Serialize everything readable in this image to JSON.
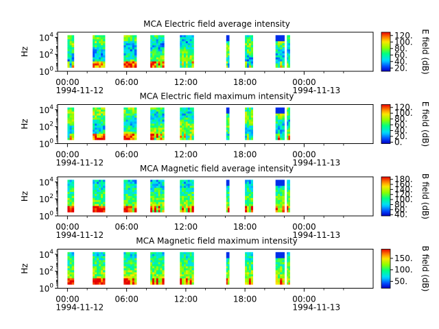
{
  "chart_data": [
    {
      "type": "heatmap",
      "title": "MCA  Electric field average intensity",
      "ylabel": "Hz",
      "colorbar_label": "E field (dB)",
      "colorbar_ticks": [
        "20.",
        "40.",
        "60.",
        "80.",
        "100.",
        "120."
      ],
      "colorbar_range": [
        10,
        130
      ],
      "y_ticks": [
        {
          "base": "10",
          "exp": "0"
        },
        {
          "base": "10",
          "exp": "2"
        },
        {
          "base": "10",
          "exp": "4"
        }
      ],
      "y_range_log10": [
        0,
        4.6
      ],
      "x_range_hours": [
        -1,
        31
      ],
      "x_ticks": [
        {
          "hours": 0,
          "label": "00:00",
          "date": "1994-11-12"
        },
        {
          "hours": 6,
          "label": "06:00"
        },
        {
          "hours": 12,
          "label": "12:00"
        },
        {
          "hours": 18,
          "label": "18:00"
        },
        {
          "hours": 24,
          "label": "00:00",
          "date": "1994-11-13"
        }
      ],
      "segments_hours": [
        [
          0.0,
          0.65
        ],
        [
          2.55,
          3.8
        ],
        [
          5.7,
          7.0
        ],
        [
          8.4,
          9.8
        ],
        [
          11.4,
          12.8
        ],
        [
          16.1,
          16.4
        ],
        [
          18.0,
          18.8
        ],
        [
          21.1,
          22.0
        ],
        [
          22.25,
          22.55
        ]
      ],
      "colormap": "rainbow"
    },
    {
      "type": "heatmap",
      "title": "MCA  Electric field maximum intensity",
      "ylabel": "Hz",
      "colorbar_label": "E field (dB)",
      "colorbar_ticks": [
        "0.",
        "20.",
        "40.",
        "60.",
        "80.",
        "100.",
        "120."
      ],
      "colorbar_range": [
        -5,
        130
      ],
      "y_ticks": [
        {
          "base": "10",
          "exp": "0"
        },
        {
          "base": "10",
          "exp": "2"
        },
        {
          "base": "10",
          "exp": "4"
        }
      ],
      "y_range_log10": [
        0,
        4.6
      ],
      "x_range_hours": [
        -1,
        31
      ],
      "x_ticks": [
        {
          "hours": 0,
          "label": "00:00",
          "date": "1994-11-12"
        },
        {
          "hours": 6,
          "label": "06:00"
        },
        {
          "hours": 12,
          "label": "12:00"
        },
        {
          "hours": 18,
          "label": "18:00"
        },
        {
          "hours": 24,
          "label": "00:00",
          "date": "1994-11-13"
        }
      ],
      "segments_hours": [
        [
          0.0,
          0.65
        ],
        [
          2.55,
          3.8
        ],
        [
          5.7,
          7.0
        ],
        [
          8.4,
          9.8
        ],
        [
          11.4,
          12.8
        ],
        [
          16.1,
          16.4
        ],
        [
          18.0,
          18.8
        ],
        [
          21.1,
          22.0
        ],
        [
          22.25,
          22.55
        ]
      ],
      "colormap": "rainbow"
    },
    {
      "type": "heatmap",
      "title": "MCA  Magnetic field average intensity",
      "ylabel": "Hz",
      "colorbar_label": "B field (dB)",
      "colorbar_ticks": [
        "40.",
        "60.",
        "80.",
        "100.",
        "120.",
        "140.",
        "160.",
        "180."
      ],
      "colorbar_range": [
        35,
        190
      ],
      "y_ticks": [
        {
          "base": "10",
          "exp": "0"
        },
        {
          "base": "10",
          "exp": "2"
        },
        {
          "base": "10",
          "exp": "4"
        }
      ],
      "y_range_log10": [
        0,
        4.6
      ],
      "x_range_hours": [
        -1,
        31
      ],
      "x_ticks": [
        {
          "hours": 0,
          "label": "00:00",
          "date": "1994-11-12"
        },
        {
          "hours": 6,
          "label": "06:00"
        },
        {
          "hours": 12,
          "label": "12:00"
        },
        {
          "hours": 18,
          "label": "18:00"
        },
        {
          "hours": 24,
          "label": "00:00",
          "date": "1994-11-13"
        }
      ],
      "segments_hours": [
        [
          0.0,
          0.65
        ],
        [
          2.55,
          3.8
        ],
        [
          5.7,
          7.0
        ],
        [
          8.4,
          9.8
        ],
        [
          11.4,
          12.8
        ],
        [
          16.1,
          16.4
        ],
        [
          18.0,
          18.8
        ],
        [
          21.1,
          22.0
        ],
        [
          22.25,
          22.55
        ]
      ],
      "colormap": "rainbow"
    },
    {
      "type": "heatmap",
      "title": "MCA  Magnetic field maximum intensity",
      "ylabel": "Hz",
      "colorbar_label": "B field (dB)",
      "colorbar_ticks": [
        "50.",
        "100.",
        "150."
      ],
      "colorbar_range": [
        20,
        190
      ],
      "y_ticks": [
        {
          "base": "10",
          "exp": "0"
        },
        {
          "base": "10",
          "exp": "2"
        },
        {
          "base": "10",
          "exp": "4"
        }
      ],
      "y_range_log10": [
        0,
        4.6
      ],
      "x_range_hours": [
        -1,
        31
      ],
      "x_ticks": [
        {
          "hours": 0,
          "label": "00:00",
          "date": "1994-11-12"
        },
        {
          "hours": 6,
          "label": "06:00"
        },
        {
          "hours": 12,
          "label": "12:00"
        },
        {
          "hours": 18,
          "label": "18:00"
        },
        {
          "hours": 24,
          "label": "00:00",
          "date": "1994-11-13"
        }
      ],
      "segments_hours": [
        [
          0.0,
          0.65
        ],
        [
          2.55,
          3.8
        ],
        [
          5.7,
          7.0
        ],
        [
          8.4,
          9.8
        ],
        [
          11.4,
          12.8
        ],
        [
          16.1,
          16.4
        ],
        [
          18.0,
          18.8
        ],
        [
          21.1,
          22.0
        ],
        [
          22.25,
          22.55
        ]
      ],
      "colormap": "rainbow"
    }
  ]
}
